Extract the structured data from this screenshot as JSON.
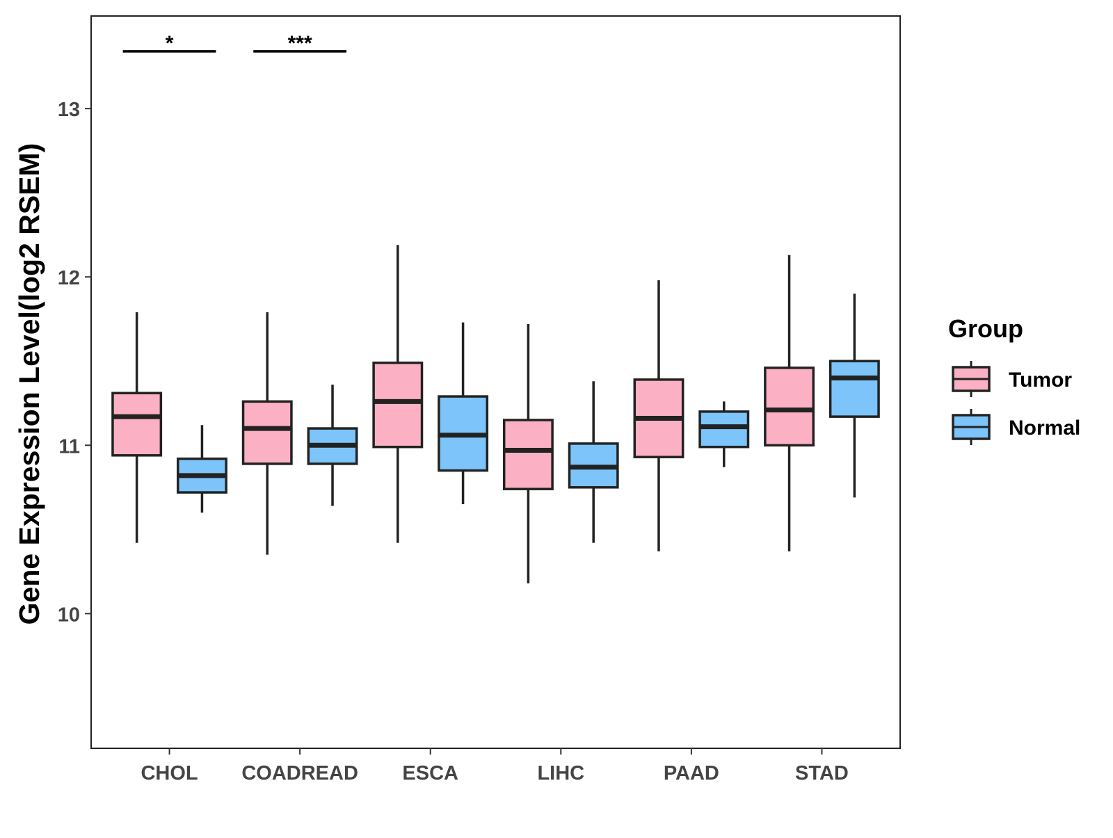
{
  "chart_data": {
    "type": "boxplot",
    "title": "",
    "xlabel": "",
    "ylabel": "Gene Expression Level(log2 RSEM)",
    "ylim": [
      9.2,
      13.55
    ],
    "yticks": [
      10,
      11,
      12,
      13
    ],
    "ytick_labels": [
      "10",
      "11",
      "12",
      "13"
    ],
    "grid": false,
    "legend_title": "Group",
    "legend_position": "right",
    "categories": [
      "CHOL",
      "COADREAD",
      "ESCA",
      "LIHC",
      "PAAD",
      "STAD"
    ],
    "series": [
      {
        "name": "Tumor",
        "color": "#FBB1C3",
        "boxes": [
          {
            "low": 10.42,
            "q1": 10.94,
            "median": 11.17,
            "q3": 11.31,
            "high": 11.79
          },
          {
            "low": 10.35,
            "q1": 10.89,
            "median": 11.1,
            "q3": 11.26,
            "high": 11.79
          },
          {
            "low": 10.42,
            "q1": 10.99,
            "median": 11.26,
            "q3": 11.49,
            "high": 12.19
          },
          {
            "low": 10.18,
            "q1": 10.74,
            "median": 10.97,
            "q3": 11.15,
            "high": 11.72
          },
          {
            "low": 10.37,
            "q1": 10.93,
            "median": 11.16,
            "q3": 11.39,
            "high": 11.98
          },
          {
            "low": 10.37,
            "q1": 11.0,
            "median": 11.21,
            "q3": 11.46,
            "high": 12.13
          }
        ]
      },
      {
        "name": "Normal",
        "color": "#7CC4F9",
        "boxes": [
          {
            "low": 10.6,
            "q1": 10.72,
            "median": 10.82,
            "q3": 10.92,
            "high": 11.12
          },
          {
            "low": 10.64,
            "q1": 10.89,
            "median": 11.0,
            "q3": 11.1,
            "high": 11.36
          },
          {
            "low": 10.65,
            "q1": 10.85,
            "median": 11.06,
            "q3": 11.29,
            "high": 11.73
          },
          {
            "low": 10.42,
            "q1": 10.75,
            "median": 10.87,
            "q3": 11.01,
            "high": 11.38
          },
          {
            "low": 10.87,
            "q1": 10.99,
            "median": 11.11,
            "q3": 11.2,
            "high": 11.26
          },
          {
            "low": 10.69,
            "q1": 11.17,
            "median": 11.4,
            "q3": 11.5,
            "high": 11.9
          }
        ]
      }
    ],
    "annotations": [
      {
        "category": "CHOL",
        "label": "*",
        "y": 13.34
      },
      {
        "category": "COADREAD",
        "label": "***",
        "y": 13.34
      }
    ]
  }
}
